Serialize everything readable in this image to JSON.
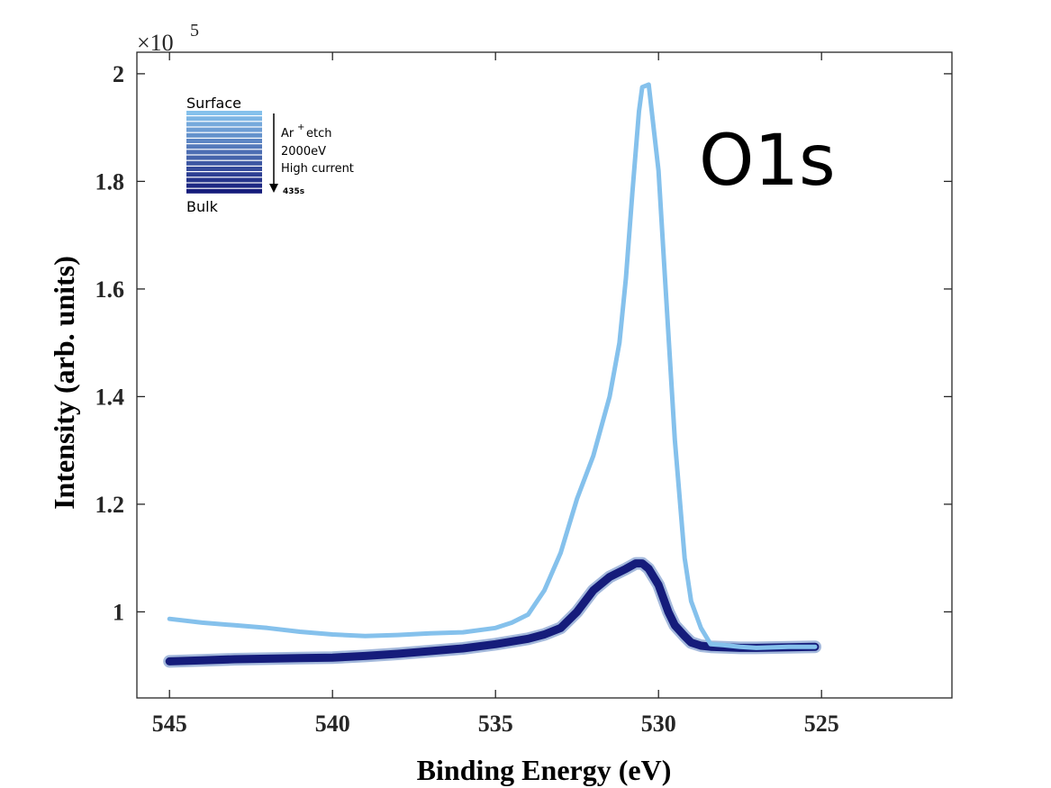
{
  "chart_data": {
    "type": "line",
    "xlabel": "Binding Energy (eV)",
    "ylabel": "Intensity (arb. units)",
    "y_exponent_base": "×10",
    "y_exponent_power": "5",
    "annotation": "O1s",
    "x_reversed": true,
    "xlim": [
      546,
      521
    ],
    "ylim": [
      0.84,
      2.04
    ],
    "x_ticks": [
      545,
      540,
      535,
      530,
      525
    ],
    "y_ticks": [
      1,
      1.2,
      1.4,
      1.6,
      1.8,
      2
    ],
    "y_tick_labels": [
      "1",
      "1.2",
      "1.4",
      "1.6",
      "1.8",
      "2"
    ],
    "grid": false,
    "legend": {
      "top_label": "Surface",
      "bottom_label": "Bulk",
      "arrow_label_lines": [
        "Ar",
        "etch",
        "2000eV",
        "High current"
      ],
      "ion_charge": "+",
      "end_label": "435s",
      "swatch_colors": [
        "#85C1EC",
        "#7DB5E4",
        "#75A9DC",
        "#6D9DD4",
        "#6592CC",
        "#5D86C4",
        "#557ABB",
        "#4D6EB3",
        "#4563AB",
        "#3D57A3",
        "#354B9B",
        "#2D3F93",
        "#25348B",
        "#1D2883",
        "#151C7B"
      ]
    },
    "series": [
      {
        "color": "#85C1EC",
        "x": [
          545,
          544,
          543,
          542,
          541,
          540,
          539,
          538,
          537,
          536,
          535,
          534.5,
          534,
          533.5,
          533,
          532.5,
          532,
          531.5,
          531.2,
          531,
          530.8,
          530.6,
          530.5,
          530.3,
          530,
          529.8,
          529.5,
          529.2,
          529,
          528.7,
          528.4,
          528,
          527.5,
          527,
          526,
          525.2
        ],
        "y": [
          0.987,
          0.98,
          0.975,
          0.97,
          0.963,
          0.958,
          0.955,
          0.957,
          0.96,
          0.962,
          0.97,
          0.98,
          0.995,
          1.04,
          1.11,
          1.21,
          1.29,
          1.4,
          1.5,
          1.62,
          1.78,
          1.93,
          1.975,
          1.98,
          1.82,
          1.62,
          1.32,
          1.1,
          1.02,
          0.97,
          0.94,
          0.938,
          0.935,
          0.933,
          0.935,
          0.935
        ]
      },
      {
        "color": "#151C7B",
        "x": [
          545,
          544,
          543,
          542,
          541,
          540,
          539,
          538,
          537,
          536,
          535,
          534,
          533.5,
          533,
          532.5,
          532,
          531.5,
          531,
          530.7,
          530.5,
          530.3,
          530,
          529.7,
          529.5,
          529.2,
          529,
          528.7,
          528.4,
          528,
          527.5,
          527,
          526,
          525.2
        ],
        "y": [
          0.908,
          0.91,
          0.912,
          0.913,
          0.914,
          0.915,
          0.918,
          0.922,
          0.927,
          0.932,
          0.94,
          0.95,
          0.958,
          0.97,
          1.0,
          1.04,
          1.065,
          1.08,
          1.09,
          1.09,
          1.08,
          1.05,
          1.0,
          0.975,
          0.955,
          0.943,
          0.937,
          0.935,
          0.934,
          0.933,
          0.933,
          0.934,
          0.935
        ]
      }
    ]
  }
}
